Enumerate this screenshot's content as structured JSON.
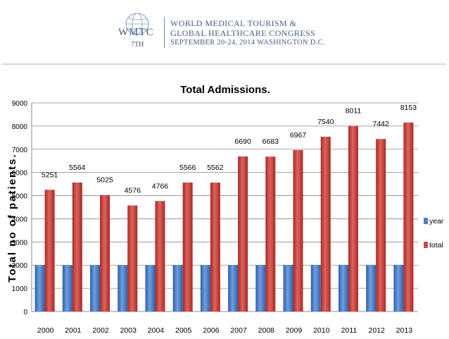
{
  "header": {
    "logo_text": "WMTC",
    "logo_edition": "7TH",
    "congress_line1": "WORLD MEDICAL TOURISM &",
    "congress_line2": "GLOBAL HEALTHCARE CONGRESS",
    "congress_line3": "SEPTEMBER 20-24, 2014 WASHINGTON D.C."
  },
  "chart_data": {
    "type": "bar",
    "title": "Total Admissions.",
    "xlabel": "",
    "ylabel": "Total no of patients.",
    "categories": [
      "2000",
      "2001",
      "2002",
      "2003",
      "2004",
      "2005",
      "2006",
      "2007",
      "2008",
      "2009",
      "2010",
      "2011",
      "2012",
      "2013"
    ],
    "series": [
      {
        "name": "year",
        "values": [
          2000,
          2001,
          2002,
          2003,
          2004,
          2005,
          2006,
          2007,
          2008,
          2009,
          2010,
          2011,
          2012,
          2013
        ],
        "color": "#4f81bd"
      },
      {
        "name": "total",
        "values": [
          5251,
          5564,
          5025,
          4576,
          4766,
          5566,
          5562,
          6690,
          6683,
          6967,
          7540,
          8011,
          7442,
          8153
        ],
        "color": "#c0504d"
      }
    ],
    "data_labels": [
      "5251",
      "5564",
      "5025",
      "4576",
      "4766",
      "5566",
      "5562",
      "6690",
      "6683",
      "6967",
      "7540",
      "8011",
      "7442",
      "8153"
    ],
    "ylim": [
      0,
      9000
    ],
    "yticks": [
      0,
      1000,
      2000,
      3000,
      4000,
      5000,
      6000,
      7000,
      8000,
      9000
    ],
    "grid": true,
    "legend_placement": "right"
  }
}
